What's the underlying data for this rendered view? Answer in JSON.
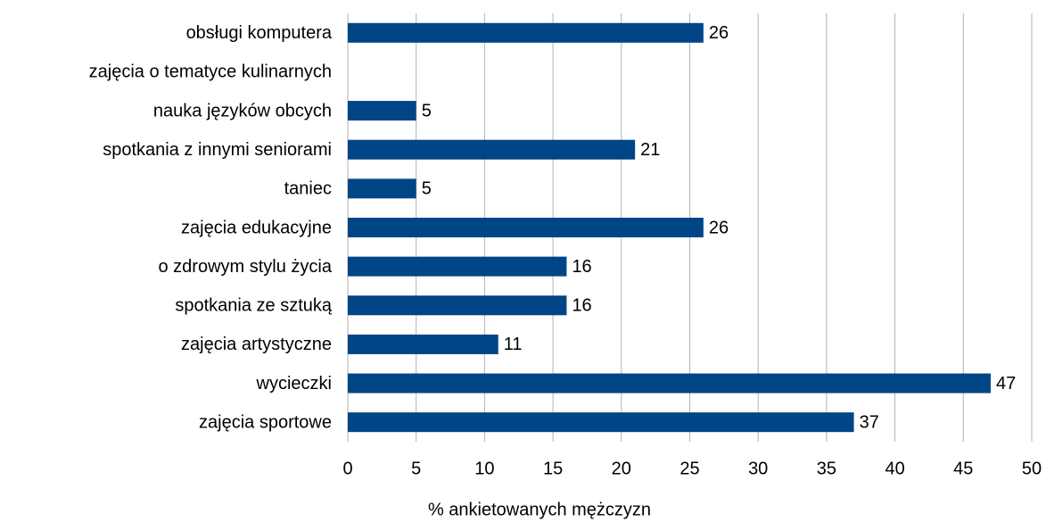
{
  "chart_data": {
    "type": "hbar",
    "xlabel": "% ankietowanych mężczyzn",
    "categories": [
      "obsługi komputera",
      "zajęcia o tematyce kulinarnych",
      "nauka języków obcych",
      "spotkania z innymi seniorami",
      "taniec",
      "zajęcia edukacyjne",
      "o zdrowym stylu życia",
      "spotkania ze sztuką",
      "zajęcia artystyczne",
      "wycieczki",
      "zajęcia sportowe"
    ],
    "values": [
      26,
      null,
      5,
      21,
      5,
      26,
      16,
      16,
      11,
      47,
      37
    ],
    "color": "#004586",
    "xlim": [
      0,
      50
    ],
    "xticks": [
      0,
      5,
      10,
      15,
      20,
      25,
      30,
      35,
      40,
      45,
      50
    ],
    "grid": true
  }
}
